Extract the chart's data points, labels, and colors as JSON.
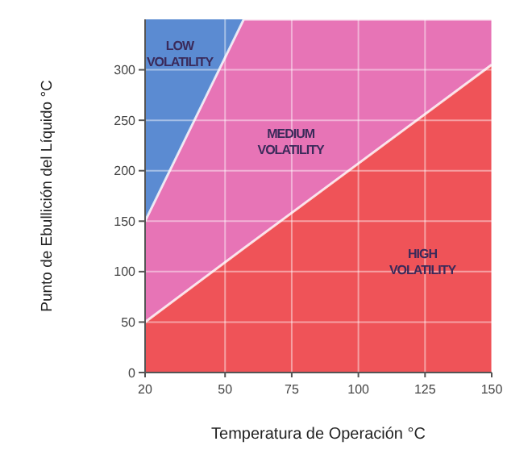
{
  "chart_data": {
    "type": "area",
    "stacked": true,
    "xlabel": "Temperatura de Operación °C",
    "ylabel": "Punto de Ebullición del Líquido °C",
    "x": [
      20,
      57,
      150
    ],
    "series": [
      {
        "name": "HIGH VOLATILITY",
        "color": "#ef5358",
        "values": [
          50,
          123,
          305
        ]
      },
      {
        "name": "MEDIUM VOLATILITY",
        "color": "#e774b6",
        "values": [
          100,
          227,
          45
        ]
      },
      {
        "name": "LOW VOLATILITY",
        "color": "#5b8bd2",
        "values": [
          200,
          0,
          0
        ]
      }
    ],
    "xlim": [
      20,
      150
    ],
    "ylim": [
      0,
      350
    ],
    "xticks": [
      20,
      50,
      75,
      100,
      125,
      150
    ],
    "yticks": [
      0,
      50,
      100,
      150,
      200,
      250,
      300
    ],
    "grid": true
  }
}
